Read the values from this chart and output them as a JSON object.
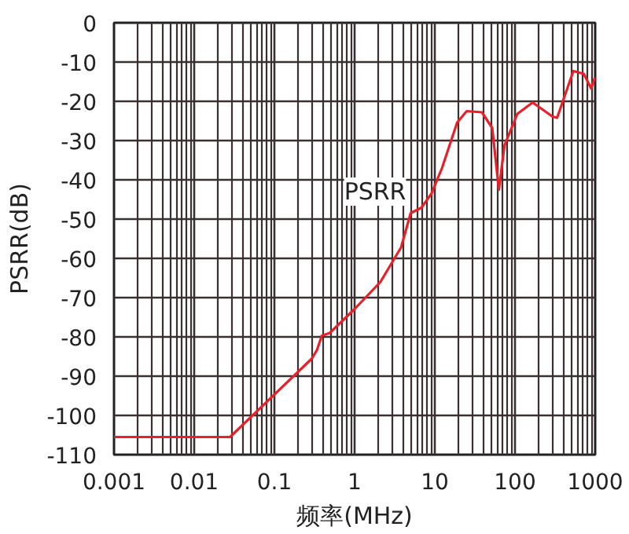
{
  "chart_data": {
    "type": "line",
    "xlabel": "频率(MHz)",
    "ylabel": "PSRR(dB)",
    "log": "x",
    "grid": true,
    "marker": "none",
    "line_style": "solid",
    "xlim": [
      0.001,
      1000
    ],
    "xticks": [
      0.001,
      0.01,
      0.1,
      1,
      10,
      100,
      1000
    ],
    "ylim": [
      -110,
      0
    ],
    "yticks": [
      -110,
      -100,
      -90,
      -80,
      -70,
      -60,
      -50,
      -40,
      -30,
      -20,
      -10,
      0
    ],
    "annotations": [
      {
        "text": "PSRR",
        "x": 1.8,
        "y": -43
      }
    ],
    "series": [
      {
        "color": "#e8202a",
        "x": [
          0.001,
          0.028,
          0.294,
          0.34,
          0.39,
          0.49,
          1,
          2.1,
          3.8,
          5.0,
          6.8,
          9.1,
          12.3,
          19,
          25,
          38.7,
          52,
          63,
          74,
          107,
          166,
          294,
          335,
          534,
          720,
          890,
          1000
        ],
        "values": [
          -105.5,
          -105.5,
          -85.5,
          -83.3,
          -79.7,
          -79,
          -72.9,
          -66,
          -57.2,
          -48.5,
          -47.1,
          -43.5,
          -37,
          -25.4,
          -22.5,
          -22.8,
          -26.8,
          -42.5,
          -31.2,
          -23.2,
          -20.3,
          -23.9,
          -24.2,
          -12.3,
          -13,
          -16.7,
          -13.8
        ]
      }
    ]
  }
}
